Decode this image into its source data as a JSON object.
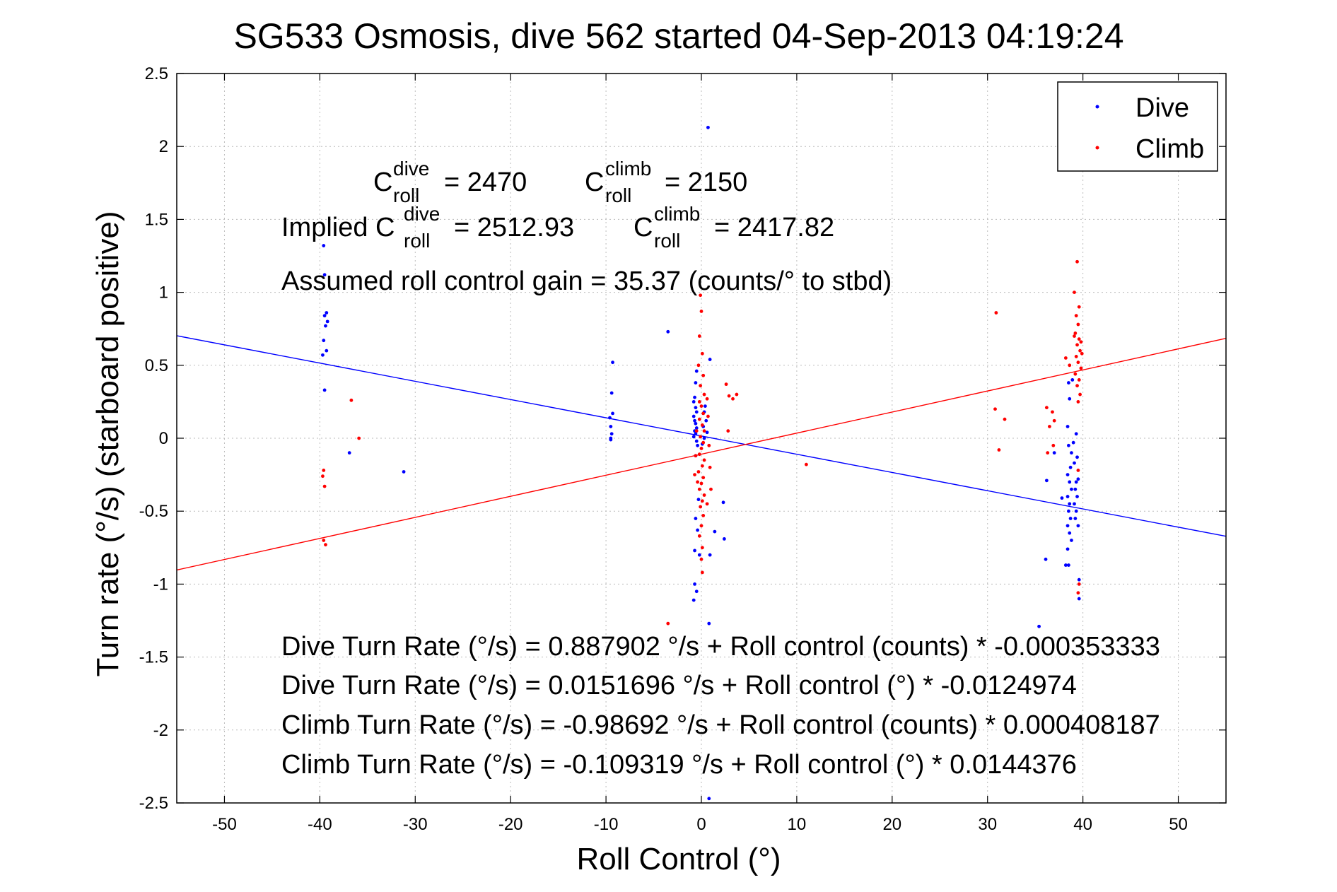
{
  "chart_data": {
    "type": "scatter",
    "title": "SG533 Osmosis, dive 562 started 04-Sep-2013 04:19:24",
    "xlabel": "Roll Control (°)",
    "ylabel": "Turn rate (°/s) (starboard positive)",
    "xlim": [
      -55,
      55
    ],
    "ylim": [
      -2.5,
      2.5
    ],
    "x_ticks": [
      -50,
      -40,
      -30,
      -20,
      -10,
      0,
      10,
      20,
      30,
      40,
      50
    ],
    "x_tick_labels": [
      "-50",
      "-40",
      "-30",
      "-20",
      "-10",
      "0",
      "10",
      "20",
      "30",
      "40",
      "50"
    ],
    "y_ticks": [
      2.5,
      2,
      1.5,
      1,
      0.5,
      0,
      -0.5,
      -1,
      -1.5,
      -2,
      -2.5
    ],
    "y_tick_labels": [
      "2.5",
      "2",
      "1.5",
      "1",
      "0.5",
      "0",
      "-0.5",
      "-1",
      "-1.5",
      "-2",
      "-2.5"
    ],
    "grid": true,
    "legend_position": "top-right",
    "colors": {
      "dive": "#0000ff",
      "climb": "#ff0000"
    },
    "legend": [
      {
        "label": "Dive",
        "color": "#0000ff"
      },
      {
        "label": "Climb",
        "color": "#ff0000"
      }
    ],
    "series": [
      {
        "name": "Dive",
        "color": "#0000ff",
        "points": [
          [
            -39.6,
            1.32
          ],
          [
            -39.5,
            1.12
          ],
          [
            -39.3,
            0.86
          ],
          [
            -39.5,
            0.84
          ],
          [
            -39.2,
            0.8
          ],
          [
            -39.4,
            0.77
          ],
          [
            -39.6,
            0.67
          ],
          [
            -39.3,
            0.6
          ],
          [
            -39.7,
            0.57
          ],
          [
            -39.5,
            0.33
          ],
          [
            -36.9,
            -0.1
          ],
          [
            -31.2,
            -0.23
          ],
          [
            -9.3,
            0.52
          ],
          [
            -9.4,
            0.31
          ],
          [
            -9.3,
            0.17
          ],
          [
            -9.6,
            0.14
          ],
          [
            -9.5,
            0.08
          ],
          [
            -9.4,
            0.03
          ],
          [
            -9.5,
            0.0
          ],
          [
            -9.5,
            -0.01
          ],
          [
            -3.5,
            0.73
          ],
          [
            0.7,
            2.13
          ],
          [
            0.9,
            0.54
          ],
          [
            -0.5,
            0.46
          ],
          [
            -0.6,
            0.38
          ],
          [
            -0.7,
            0.28
          ],
          [
            -0.8,
            0.25
          ],
          [
            -0.6,
            0.21
          ],
          [
            -0.5,
            0.18
          ],
          [
            -0.8,
            0.15
          ],
          [
            -0.7,
            0.12
          ],
          [
            -0.6,
            0.1
          ],
          [
            -0.5,
            0.07
          ],
          [
            -0.7,
            0.05
          ],
          [
            -0.6,
            0.03
          ],
          [
            -0.8,
            0.01
          ],
          [
            -0.5,
            -0.02
          ],
          [
            -0.4,
            -0.05
          ],
          [
            0.4,
            0.22
          ],
          [
            0.3,
            0.18
          ],
          [
            0.5,
            0.12
          ],
          [
            0.2,
            0.08
          ],
          [
            0.6,
            0.04
          ],
          [
            0.3,
            0.0
          ],
          [
            0.1,
            -0.04
          ],
          [
            -0.6,
            -0.12
          ],
          [
            -0.3,
            -0.42
          ],
          [
            -0.6,
            -0.55
          ],
          [
            -0.4,
            -0.63
          ],
          [
            -0.7,
            -0.77
          ],
          [
            -0.2,
            -0.8
          ],
          [
            0.9,
            -0.8
          ],
          [
            1.4,
            -0.64
          ],
          [
            2.3,
            -0.44
          ],
          [
            2.4,
            -0.69
          ],
          [
            -0.7,
            -1.0
          ],
          [
            -0.5,
            -1.05
          ],
          [
            -0.8,
            -1.11
          ],
          [
            0.8,
            -1.27
          ],
          [
            0.8,
            -2.47
          ],
          [
            35.4,
            -1.29
          ],
          [
            36.1,
            -0.83
          ],
          [
            36.2,
            -0.29
          ],
          [
            37.0,
            -0.1
          ],
          [
            37.8,
            -0.41
          ],
          [
            38.2,
            -0.87
          ],
          [
            38.5,
            0.38
          ],
          [
            38.6,
            0.27
          ],
          [
            38.9,
            0.4
          ],
          [
            38.4,
            0.08
          ],
          [
            38.5,
            -0.05
          ],
          [
            38.8,
            -0.1
          ],
          [
            38.7,
            -0.2
          ],
          [
            38.4,
            -0.25
          ],
          [
            38.6,
            -0.3
          ],
          [
            38.8,
            -0.35
          ],
          [
            38.4,
            -0.4
          ],
          [
            38.6,
            -0.45
          ],
          [
            38.5,
            -0.5
          ],
          [
            38.7,
            -0.55
          ],
          [
            38.4,
            -0.6
          ],
          [
            38.6,
            -0.65
          ],
          [
            38.8,
            -0.7
          ],
          [
            38.4,
            -0.76
          ],
          [
            38.5,
            -0.87
          ],
          [
            39.1,
            -0.17
          ],
          [
            39.3,
            -0.3
          ],
          [
            39.2,
            -0.35
          ],
          [
            39.4,
            -0.4
          ],
          [
            39.1,
            -0.45
          ],
          [
            39.3,
            -0.5
          ],
          [
            39.2,
            -0.55
          ],
          [
            39.5,
            -0.6
          ],
          [
            39.6,
            -0.97
          ],
          [
            39.6,
            -1.1
          ],
          [
            39.0,
            -0.03
          ],
          [
            39.3,
            0.03
          ],
          [
            39.4,
            -0.13
          ],
          [
            39.5,
            -0.28
          ]
        ]
      },
      {
        "name": "Climb",
        "color": "#ff0000",
        "points": [
          [
            -39.6,
            -0.22
          ],
          [
            -39.7,
            -0.26
          ],
          [
            -39.5,
            -0.33
          ],
          [
            -39.6,
            -0.7
          ],
          [
            -39.4,
            -0.73
          ],
          [
            -36.7,
            0.26
          ],
          [
            -35.9,
            0.0
          ],
          [
            -3.5,
            -1.27
          ],
          [
            -0.1,
            0.98
          ],
          [
            0.0,
            0.87
          ],
          [
            -0.2,
            0.7
          ],
          [
            0.1,
            0.58
          ],
          [
            -0.3,
            0.5
          ],
          [
            0.2,
            0.43
          ],
          [
            -0.1,
            0.36
          ],
          [
            0.3,
            0.3
          ],
          [
            -0.2,
            0.25
          ],
          [
            0.0,
            0.22
          ],
          [
            0.2,
            0.17
          ],
          [
            -0.2,
            0.13
          ],
          [
            0.1,
            0.09
          ],
          [
            0.3,
            0.05
          ],
          [
            -0.1,
            0.01
          ],
          [
            0.2,
            -0.03
          ],
          [
            0.0,
            -0.07
          ],
          [
            -0.2,
            -0.11
          ],
          [
            0.3,
            -0.15
          ],
          [
            0.1,
            -0.19
          ],
          [
            -0.3,
            -0.23
          ],
          [
            0.2,
            -0.27
          ],
          [
            0.0,
            -0.31
          ],
          [
            -0.2,
            -0.35
          ],
          [
            0.3,
            -0.39
          ],
          [
            0.1,
            -0.43
          ],
          [
            -0.1,
            -0.47
          ],
          [
            0.2,
            -0.53
          ],
          [
            0.0,
            -0.6
          ],
          [
            -0.2,
            -0.67
          ],
          [
            0.1,
            -0.75
          ],
          [
            0.0,
            -0.83
          ],
          [
            0.1,
            -0.92
          ],
          [
            0.6,
            0.27
          ],
          [
            0.7,
            0.15
          ],
          [
            0.8,
            -0.05
          ],
          [
            0.9,
            -0.2
          ],
          [
            1.0,
            -0.35
          ],
          [
            0.6,
            -0.45
          ],
          [
            -0.5,
            0.05
          ],
          [
            -0.6,
            -0.12
          ],
          [
            -0.7,
            -0.25
          ],
          [
            -0.4,
            -0.3
          ],
          [
            2.6,
            0.37
          ],
          [
            2.9,
            0.29
          ],
          [
            3.3,
            0.27
          ],
          [
            3.7,
            0.3
          ],
          [
            2.8,
            0.05
          ],
          [
            11.0,
            -0.18
          ],
          [
            30.9,
            0.86
          ],
          [
            30.8,
            0.2
          ],
          [
            31.2,
            -0.08
          ],
          [
            31.8,
            0.13
          ],
          [
            36.2,
            0.21
          ],
          [
            36.8,
            0.18
          ],
          [
            37.0,
            0.12
          ],
          [
            36.5,
            0.08
          ],
          [
            36.9,
            -0.05
          ],
          [
            36.3,
            -0.1
          ],
          [
            39.1,
            1.0
          ],
          [
            39.4,
            1.21
          ],
          [
            39.6,
            0.9
          ],
          [
            39.3,
            0.84
          ],
          [
            39.5,
            0.78
          ],
          [
            39.2,
            0.72
          ],
          [
            39.6,
            0.68
          ],
          [
            39.4,
            0.64
          ],
          [
            39.7,
            0.6
          ],
          [
            39.3,
            0.56
          ],
          [
            39.5,
            0.52
          ],
          [
            39.8,
            0.48
          ],
          [
            39.2,
            0.44
          ],
          [
            39.6,
            0.4
          ],
          [
            39.4,
            0.36
          ],
          [
            39.7,
            0.3
          ],
          [
            39.5,
            0.25
          ],
          [
            39.9,
            0.58
          ],
          [
            39.8,
            0.66
          ],
          [
            39.1,
            0.7
          ],
          [
            39.5,
            -0.22
          ],
          [
            39.6,
            -1.0
          ],
          [
            39.5,
            -1.06
          ],
          [
            38.2,
            0.55
          ],
          [
            38.6,
            0.5
          ]
        ]
      }
    ],
    "fit_lines": [
      {
        "series": "Dive",
        "color": "#0000ff",
        "intercept": 0.0151696,
        "slope": -0.0124974
      },
      {
        "series": "Climb",
        "color": "#ff0000",
        "intercept": -0.109319,
        "slope": 0.0144376
      }
    ],
    "annotations": {
      "c_roll_dive": {
        "base": "C",
        "sup": "dive",
        "sub": "roll",
        "value": "= 2470"
      },
      "c_roll_climb": {
        "base": "C",
        "sup": "climb",
        "sub": "roll",
        "value": "= 2150"
      },
      "implied_prefix": "Implied C",
      "implied_dive": {
        "sup": "dive",
        "sub": "roll",
        "value": "= 2512.93"
      },
      "implied_climb": {
        "base": "C",
        "sup": "climb",
        "sub": "roll",
        "value": "= 2417.82"
      },
      "gain": "Assumed roll control gain = 35.37 (counts/° to stbd)",
      "eq1": "Dive Turn Rate (°/s) = 0.887902 °/s + Roll control (counts) * -0.000353333",
      "eq2": "Dive Turn Rate (°/s) = 0.0151696 °/s + Roll control (°) * -0.0124974",
      "eq3": "Climb Turn Rate (°/s) = -0.98692 °/s + Roll control (counts) * 0.000408187",
      "eq4": "Climb Turn Rate (°/s) = -0.109319 °/s + Roll control (°) * 0.0144376"
    }
  }
}
